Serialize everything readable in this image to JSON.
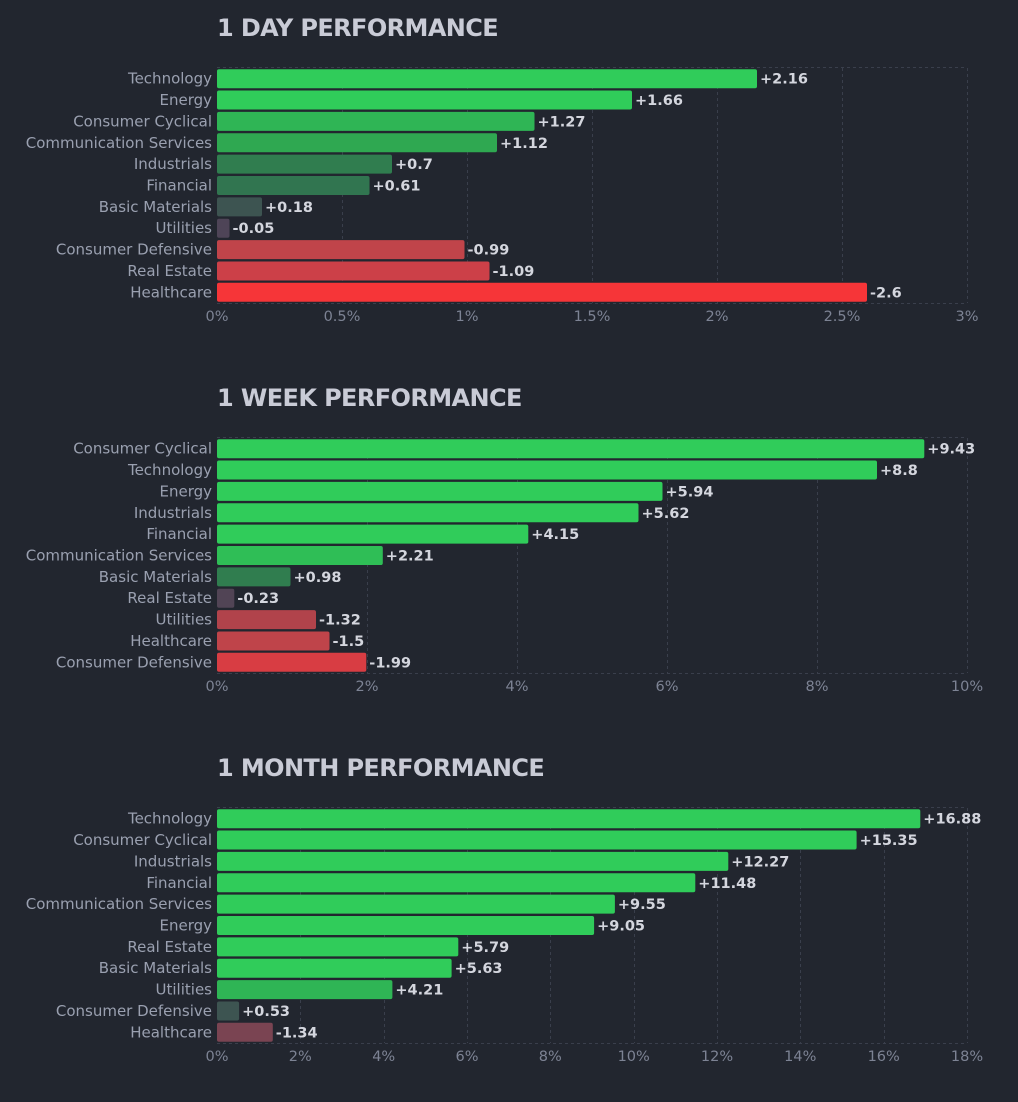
{
  "chart_data": [
    {
      "type": "bar",
      "orientation": "horizontal",
      "title": "1 DAY PERFORMANCE",
      "categories": [
        "Technology",
        "Energy",
        "Consumer Cyclical",
        "Communication Services",
        "Industrials",
        "Financial",
        "Basic Materials",
        "Utilities",
        "Consumer Defensive",
        "Real Estate",
        "Healthcare"
      ],
      "values": [
        2.16,
        1.66,
        1.27,
        1.12,
        0.7,
        0.61,
        0.18,
        -0.05,
        -0.99,
        -1.09,
        -2.6
      ],
      "value_labels": [
        "+2.16",
        "+1.66",
        "+1.27",
        "+1.12",
        "+0.7",
        "+0.61",
        "+0.18",
        "-0.05",
        "-0.99",
        "-1.09",
        "-2.6"
      ],
      "bar_colors": [
        "#30cc5a",
        "#30cc5a",
        "#2fb555",
        "#2fa851",
        "#307d4f",
        "#317550",
        "#3d5451",
        "#4e4457",
        "#c0444a",
        "#cc4048",
        "#f63538"
      ],
      "xlabel": "",
      "ylabel": "",
      "xlim": [
        0,
        3
      ],
      "xticks": [
        0,
        0.5,
        1,
        1.5,
        2,
        2.5,
        3
      ],
      "xtick_labels": [
        "0%",
        "0.5%",
        "1%",
        "1.5%",
        "2%",
        "2.5%",
        "3%"
      ],
      "bar_length": "absolute value",
      "grid": true,
      "legend": "none"
    },
    {
      "type": "bar",
      "orientation": "horizontal",
      "title": "1 WEEK PERFORMANCE",
      "categories": [
        "Consumer Cyclical",
        "Technology",
        "Energy",
        "Industrials",
        "Financial",
        "Communication Services",
        "Basic Materials",
        "Real Estate",
        "Utilities",
        "Healthcare",
        "Consumer Defensive"
      ],
      "values": [
        9.43,
        8.8,
        5.94,
        5.62,
        4.15,
        2.21,
        0.98,
        -0.23,
        -1.32,
        -1.5,
        -1.99
      ],
      "value_labels": [
        "+9.43",
        "+8.8",
        "+5.94",
        "+5.62",
        "+4.15",
        "+2.21",
        "+0.98",
        "-0.23",
        "-1.32",
        "-1.5",
        "-1.99"
      ],
      "bar_colors": [
        "#30cc5a",
        "#30cc5a",
        "#30cc5a",
        "#30cc5a",
        "#30cc5a",
        "#2fbe56",
        "#307d4f",
        "#514455",
        "#b1434b",
        "#bf444a",
        "#d83d43"
      ],
      "xlabel": "",
      "ylabel": "",
      "xlim": [
        0,
        10
      ],
      "xticks": [
        0,
        2,
        4,
        6,
        8,
        10
      ],
      "xtick_labels": [
        "0%",
        "2%",
        "4%",
        "6%",
        "8%",
        "10%"
      ],
      "bar_length": "absolute value",
      "grid": true,
      "legend": "none"
    },
    {
      "type": "bar",
      "orientation": "horizontal",
      "title": "1 MONTH PERFORMANCE",
      "categories": [
        "Technology",
        "Consumer Cyclical",
        "Industrials",
        "Financial",
        "Communication Services",
        "Energy",
        "Real Estate",
        "Basic Materials",
        "Utilities",
        "Consumer Defensive",
        "Healthcare"
      ],
      "values": [
        16.88,
        15.35,
        12.27,
        11.48,
        9.55,
        9.05,
        5.79,
        5.63,
        4.21,
        0.53,
        -1.34
      ],
      "value_labels": [
        "+16.88",
        "+15.35",
        "+12.27",
        "+11.48",
        "+9.55",
        "+9.05",
        "+5.79",
        "+5.63",
        "+4.21",
        "+0.53",
        "-1.34"
      ],
      "bar_colors": [
        "#30cc5a",
        "#30cc5a",
        "#30cc5a",
        "#30cc5a",
        "#30cc5a",
        "#30cc5a",
        "#30cc5a",
        "#30cc5a",
        "#2fb555",
        "#3d5451",
        "#7a4452"
      ],
      "xlabel": "",
      "ylabel": "",
      "xlim": [
        0,
        18
      ],
      "xticks": [
        0,
        2,
        4,
        6,
        8,
        10,
        12,
        14,
        16,
        18
      ],
      "xtick_labels": [
        "0%",
        "2%",
        "4%",
        "6%",
        "8%",
        "10%",
        "12%",
        "14%",
        "16%",
        "18%"
      ],
      "bar_length": "absolute value",
      "grid": true,
      "legend": "none"
    }
  ]
}
